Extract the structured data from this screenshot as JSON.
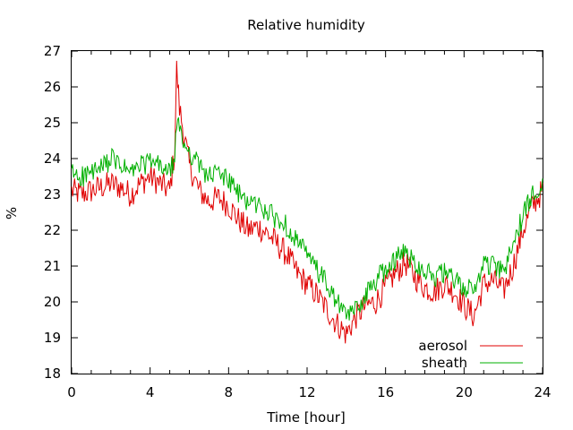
{
  "chart_data": {
    "type": "line",
    "title": "Relative humidity",
    "xlabel": "Time [hour]",
    "ylabel": "%",
    "xlim": [
      0,
      24
    ],
    "ylim": [
      18,
      27
    ],
    "xticks": [
      0,
      4,
      8,
      12,
      16,
      20,
      24
    ],
    "yticks": [
      18,
      19,
      20,
      21,
      22,
      23,
      24,
      25,
      26,
      27
    ],
    "grid": false,
    "legend_position": "bottom-right",
    "series": [
      {
        "name": "aerosol",
        "color": "#e00000",
        "x": [
          0,
          0.5,
          1,
          1.5,
          2,
          2.5,
          3,
          3.5,
          4,
          4.5,
          5,
          5.25,
          5.35,
          5.5,
          5.75,
          6,
          6.5,
          7,
          7.5,
          8,
          8.5,
          9,
          9.5,
          10,
          10.5,
          11,
          11.5,
          12,
          12.5,
          13,
          13.5,
          14,
          14.5,
          15,
          15.5,
          16,
          16.5,
          17,
          17.5,
          18,
          18.5,
          19,
          19.5,
          20,
          20.5,
          21,
          21.5,
          22,
          22.5,
          23,
          23.5,
          24
        ],
        "values": [
          23.1,
          23.0,
          23.1,
          23.2,
          23.3,
          23.2,
          23.0,
          23.3,
          23.5,
          23.3,
          23.1,
          24.2,
          26.5,
          25.4,
          24.6,
          23.8,
          23.1,
          22.8,
          22.9,
          22.7,
          22.3,
          22.0,
          22.1,
          21.9,
          21.6,
          21.3,
          20.8,
          20.5,
          20.2,
          19.8,
          19.4,
          19.1,
          19.6,
          19.9,
          20.0,
          20.4,
          20.8,
          21.1,
          20.7,
          20.4,
          20.3,
          20.5,
          20.3,
          19.9,
          19.6,
          20.5,
          20.6,
          20.3,
          21.0,
          22.0,
          22.7,
          23.1
        ]
      },
      {
        "name": "sheath",
        "color": "#00b000",
        "x": [
          0,
          0.5,
          1,
          1.5,
          2,
          2.5,
          3,
          3.5,
          4,
          4.5,
          5,
          5.25,
          5.35,
          5.5,
          5.75,
          6,
          6.5,
          7,
          7.5,
          8,
          8.5,
          9,
          9.5,
          10,
          10.5,
          11,
          11.5,
          12,
          12.5,
          13,
          13.5,
          14,
          14.5,
          15,
          15.5,
          16,
          16.5,
          17,
          17.5,
          18,
          18.5,
          19,
          19.5,
          20,
          20.5,
          21,
          21.5,
          22,
          22.5,
          23,
          23.5,
          24
        ],
        "values": [
          23.6,
          23.5,
          23.6,
          23.7,
          24.0,
          23.8,
          23.6,
          23.8,
          23.9,
          23.8,
          23.6,
          24.0,
          25.0,
          24.8,
          24.4,
          24.2,
          23.8,
          23.5,
          23.6,
          23.4,
          23.0,
          22.8,
          22.7,
          22.5,
          22.3,
          22.1,
          21.7,
          21.3,
          20.9,
          20.5,
          20.0,
          19.6,
          19.8,
          20.2,
          20.6,
          20.9,
          21.2,
          21.4,
          21.1,
          20.9,
          20.7,
          20.8,
          20.6,
          20.4,
          20.3,
          21.1,
          21.0,
          20.8,
          21.6,
          22.4,
          23.0,
          23.4
        ]
      }
    ]
  }
}
